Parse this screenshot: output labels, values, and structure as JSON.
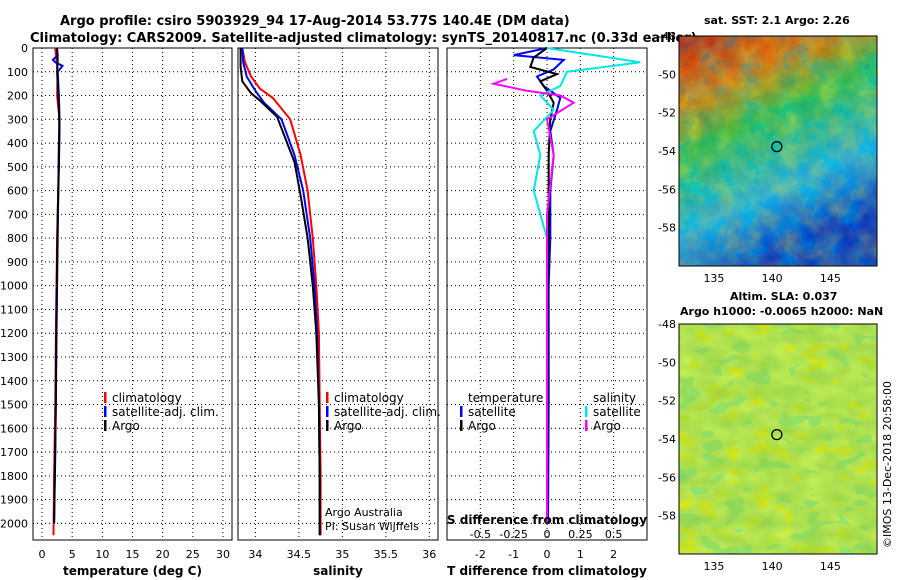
{
  "title": {
    "line1": "Argo profile: csiro 5903929_94 17-Aug-2014 53.77S 140.4E (DM data)",
    "line2": "Climatology: CARS2009. Satellite-adjusted climatology: synTS_20140817.nc (0.33d earlier)"
  },
  "watermark": "©IMOS 13-Dec-2018 20:58:00",
  "credit": {
    "line1": "Argo Australia",
    "line2": "PI: Susan Wijffels"
  },
  "colors": {
    "climatology": "#ff0000",
    "satellite": "#0000ff",
    "argo": "#000000",
    "s_satellite": "#00e5e5",
    "s_argo": "#ff00ff"
  },
  "chart_data": [
    {
      "id": "temperature",
      "type": "line",
      "xlabel": "temperature (deg C)",
      "ylabel": "depth (dbar)",
      "xlim": [
        -1.5,
        31.5
      ],
      "ylim": [
        2070,
        0
      ],
      "xticks": [
        0,
        5,
        10,
        15,
        20,
        25,
        30
      ],
      "yticks": [
        0,
        100,
        200,
        300,
        400,
        500,
        600,
        700,
        800,
        900,
        1000,
        1100,
        1200,
        1300,
        1400,
        1500,
        1600,
        1700,
        1800,
        1900,
        2000
      ],
      "legend": [
        "climatology",
        "satellite-adj. clim.",
        "Argo"
      ],
      "series": [
        {
          "name": "climatology",
          "color": "#ff0000",
          "points": [
            [
              2.2,
              0
            ],
            [
              2.4,
              50
            ],
            [
              2.6,
              100
            ],
            [
              2.5,
              200
            ],
            [
              2.9,
              300
            ],
            [
              2.8,
              400
            ],
            [
              2.7,
              600
            ],
            [
              2.5,
              800
            ],
            [
              2.4,
              1000
            ],
            [
              2.3,
              1200
            ],
            [
              2.2,
              1500
            ],
            [
              2.0,
              1800
            ],
            [
              1.9,
              2050
            ]
          ]
        },
        {
          "name": "satellite-adj. clim.",
          "color": "#0000ff",
          "points": [
            [
              2.4,
              0
            ],
            [
              2.6,
              30
            ],
            [
              1.8,
              50
            ],
            [
              2.2,
              60
            ],
            [
              3.4,
              75
            ],
            [
              2.6,
              100
            ],
            [
              2.8,
              200
            ],
            [
              2.9,
              300
            ],
            [
              2.8,
              400
            ],
            [
              2.7,
              600
            ],
            [
              2.6,
              800
            ],
            [
              2.5,
              1000
            ],
            [
              2.4,
              1200
            ],
            [
              2.3,
              1500
            ],
            [
              2.1,
              1800
            ],
            [
              2.0,
              2000
            ]
          ]
        },
        {
          "name": "Argo",
          "color": "#000000",
          "points": [
            [
              2.5,
              0
            ],
            [
              2.6,
              50
            ],
            [
              2.5,
              100
            ],
            [
              2.6,
              150
            ],
            [
              2.8,
              250
            ],
            [
              2.9,
              350
            ],
            [
              2.8,
              500
            ],
            [
              2.6,
              700
            ],
            [
              2.5,
              900
            ],
            [
              2.4,
              1100
            ],
            [
              2.3,
              1400
            ],
            [
              2.2,
              1700
            ],
            [
              2.0,
              2000
            ]
          ]
        }
      ]
    },
    {
      "id": "salinity",
      "type": "line",
      "xlabel": "salinity",
      "xlim": [
        33.8,
        36.1
      ],
      "ylim": [
        2070,
        0
      ],
      "xticks": [
        34,
        34.5,
        35,
        35.5,
        36
      ],
      "xtick_labels": [
        "34",
        "34.5",
        "35",
        "35.5",
        "36"
      ],
      "legend": [
        "climatology",
        "satellite-adj. clim.",
        "Argo"
      ],
      "series": [
        {
          "name": "climatology",
          "color": "#ff0000",
          "points": [
            [
              33.85,
              0
            ],
            [
              33.88,
              60
            ],
            [
              33.95,
              120
            ],
            [
              34.05,
              170
            ],
            [
              34.2,
              210
            ],
            [
              34.4,
              300
            ],
            [
              34.52,
              450
            ],
            [
              34.6,
              600
            ],
            [
              34.66,
              800
            ],
            [
              34.7,
              1000
            ],
            [
              34.73,
              1200
            ],
            [
              34.74,
              1500
            ],
            [
              34.75,
              1800
            ],
            [
              34.75,
              2050
            ]
          ]
        },
        {
          "name": "satellite-adj. clim.",
          "color": "#0000ff",
          "points": [
            [
              33.85,
              0
            ],
            [
              33.86,
              60
            ],
            [
              33.9,
              120
            ],
            [
              34.0,
              180
            ],
            [
              34.1,
              230
            ],
            [
              34.3,
              300
            ],
            [
              34.45,
              450
            ],
            [
              34.55,
              600
            ],
            [
              34.63,
              800
            ],
            [
              34.68,
              1000
            ],
            [
              34.71,
              1200
            ],
            [
              34.73,
              1500
            ],
            [
              34.74,
              1800
            ],
            [
              34.74,
              2050
            ]
          ]
        },
        {
          "name": "Argo",
          "color": "#000000",
          "points": [
            [
              33.83,
              0
            ],
            [
              33.83,
              80
            ],
            [
              33.85,
              140
            ],
            [
              33.95,
              190
            ],
            [
              34.05,
              220
            ],
            [
              34.25,
              290
            ],
            [
              34.45,
              480
            ],
            [
              34.52,
              620
            ],
            [
              34.6,
              800
            ],
            [
              34.66,
              1000
            ],
            [
              34.7,
              1200
            ],
            [
              34.73,
              1500
            ],
            [
              34.74,
              1800
            ],
            [
              34.74,
              2050
            ]
          ]
        }
      ]
    },
    {
      "id": "differences",
      "type": "line",
      "xlabel": "T difference from climatology",
      "xlabel2": "S difference from climatology",
      "xlim": [
        -3,
        3
      ],
      "ylim": [
        2070,
        0
      ],
      "xticks": [
        -2,
        -1,
        0,
        1,
        2
      ],
      "s_ticks": [
        -0.5,
        -0.25,
        0,
        0.25,
        0.5
      ],
      "s_tick_labels": [
        "-0.5",
        "-0.25",
        "0",
        "0.25",
        "0.5"
      ],
      "legend_temperature": {
        "title": "temperature",
        "items": [
          "satellite",
          "Argo"
        ]
      },
      "legend_salinity": {
        "title": "salinity",
        "items": [
          "satellite",
          "Argo"
        ]
      },
      "series": [
        {
          "name": "T satellite",
          "color": "#0000ff",
          "points": [
            [
              0,
              0
            ],
            [
              -1.0,
              30
            ],
            [
              0.5,
              50
            ],
            [
              0.2,
              90
            ],
            [
              -0.3,
              120
            ],
            [
              -0.1,
              160
            ],
            [
              0.4,
              210
            ],
            [
              0.3,
              260
            ],
            [
              0.1,
              350
            ],
            [
              0.2,
              450
            ],
            [
              0.1,
              600
            ],
            [
              0.1,
              800
            ],
            [
              0.05,
              1000
            ],
            [
              0.05,
              1500
            ],
            [
              0.03,
              2000
            ]
          ]
        },
        {
          "name": "T Argo",
          "color": "#000000",
          "points": [
            [
              0,
              0
            ],
            [
              -0.4,
              40
            ],
            [
              -0.5,
              80
            ],
            [
              0.3,
              110
            ],
            [
              -0.2,
              140
            ],
            [
              0,
              180
            ],
            [
              0.2,
              230
            ],
            [
              0.1,
              300
            ],
            [
              0.05,
              450
            ],
            [
              0.05,
              700
            ],
            [
              0.03,
              1000
            ],
            [
              0.02,
              1500
            ],
            [
              0.0,
              2000
            ]
          ]
        },
        {
          "name": "S satellite",
          "color": "#00e5e5",
          "points": [
            [
              0,
              0
            ],
            [
              0.7,
              60
            ],
            [
              0.15,
              100
            ],
            [
              0.1,
              160
            ],
            [
              -0.05,
              200
            ],
            [
              0.05,
              260
            ],
            [
              -0.1,
              350
            ],
            [
              -0.05,
              450
            ],
            [
              -0.1,
              600
            ],
            [
              0.0,
              800
            ],
            [
              0.0,
              1000
            ],
            [
              0.0,
              1500
            ],
            [
              0.0,
              2000
            ]
          ]
        },
        {
          "name": "S Argo",
          "color": "#ff00ff",
          "points": [
            [
              -0.3,
              130
            ],
            [
              -0.4,
              150
            ],
            [
              -0.15,
              180
            ],
            [
              0.1,
              200
            ],
            [
              0.2,
              230
            ],
            [
              0.0,
              300
            ],
            [
              0.05,
              450
            ],
            [
              0.0,
              700
            ],
            [
              0.0,
              1000
            ],
            [
              0.0,
              1500
            ],
            [
              0.0,
              2000
            ]
          ]
        }
      ]
    },
    {
      "id": "sst_map",
      "type": "heatmap",
      "title": "sat. SST: 2.1 Argo: 2.26",
      "xlim": [
        132,
        149
      ],
      "ylim": [
        -60,
        -48
      ],
      "xticks": [
        135,
        140,
        145
      ],
      "yticks": [
        -48,
        -50,
        -52,
        -54,
        -56,
        -58
      ],
      "marker": [
        140.4,
        -53.77
      ]
    },
    {
      "id": "sla_map",
      "type": "heatmap",
      "title": "Altim. SLA: 0.037",
      "subtitle": "Argo h1000: -0.0065 h2000: NaN",
      "xlim": [
        132,
        149
      ],
      "ylim": [
        -60,
        -48
      ],
      "xticks": [
        135,
        140,
        145
      ],
      "yticks": [
        -48,
        -50,
        -52,
        -54,
        -56,
        -58
      ],
      "marker": [
        140.4,
        -53.77
      ]
    }
  ]
}
